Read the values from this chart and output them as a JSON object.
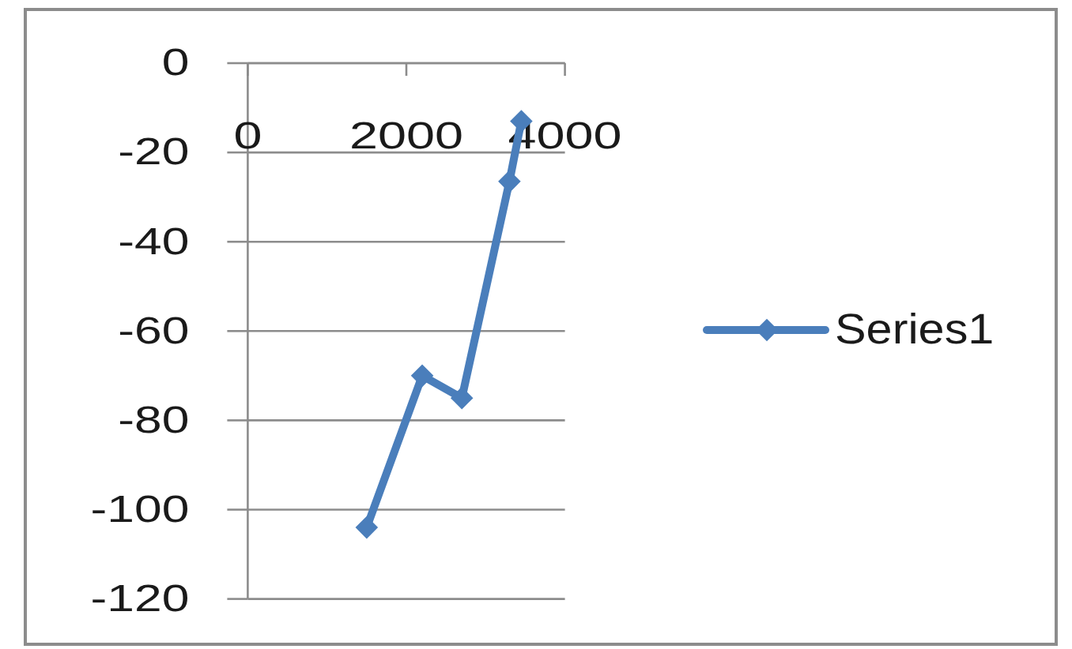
{
  "chart_data": {
    "type": "line",
    "x": [
      1500,
      2200,
      2700,
      3300,
      3450
    ],
    "series": [
      {
        "name": "Series1",
        "color": "#4a7ebb",
        "values": [
          -104,
          -70,
          -75,
          -26.5,
          -13
        ]
      }
    ],
    "xlim": [
      0,
      4000
    ],
    "xticks": [
      0,
      2000,
      4000
    ],
    "ylim": [
      -120,
      0
    ],
    "yticks": [
      -120,
      -100,
      -80,
      -60,
      -40,
      -20,
      0
    ],
    "grid": "y",
    "legend": "right",
    "marker": "diamond",
    "line_style": "solid"
  }
}
